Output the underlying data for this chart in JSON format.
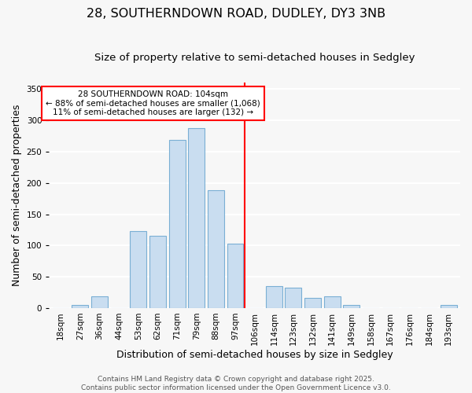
{
  "title": "28, SOUTHERNDOWN ROAD, DUDLEY, DY3 3NB",
  "subtitle": "Size of property relative to semi-detached houses in Sedgley",
  "xlabel": "Distribution of semi-detached houses by size in Sedgley",
  "ylabel": "Number of semi-detached properties",
  "bar_labels": [
    "18sqm",
    "27sqm",
    "36sqm",
    "44sqm",
    "53sqm",
    "62sqm",
    "71sqm",
    "79sqm",
    "88sqm",
    "97sqm",
    "106sqm",
    "114sqm",
    "123sqm",
    "132sqm",
    "141sqm",
    "149sqm",
    "158sqm",
    "167sqm",
    "176sqm",
    "184sqm",
    "193sqm"
  ],
  "bar_values": [
    0,
    5,
    19,
    0,
    123,
    116,
    269,
    287,
    188,
    103,
    0,
    35,
    32,
    16,
    19,
    5,
    0,
    0,
    0,
    0,
    5
  ],
  "bar_color": "#c9ddf0",
  "bar_edge_color": "#7aafd4",
  "vline_x_index": 9.5,
  "vline_color": "red",
  "annotation_title": "28 SOUTHERNDOWN ROAD: 104sqm",
  "annotation_line1": "← 88% of semi-detached houses are smaller (1,068)",
  "annotation_line2": "11% of semi-detached houses are larger (132) →",
  "annotation_box_color": "white",
  "annotation_box_edge": "red",
  "ylim": [
    0,
    360
  ],
  "yticks": [
    0,
    50,
    100,
    150,
    200,
    250,
    300,
    350
  ],
  "footer1": "Contains HM Land Registry data © Crown copyright and database right 2025.",
  "footer2": "Contains public sector information licensed under the Open Government Licence v3.0.",
  "background_color": "#f7f7f7",
  "grid_color": "white",
  "title_fontsize": 11.5,
  "subtitle_fontsize": 9.5,
  "axis_label_fontsize": 9,
  "tick_fontsize": 7.5,
  "footer_fontsize": 6.5,
  "annotation_fontsize": 7.5
}
